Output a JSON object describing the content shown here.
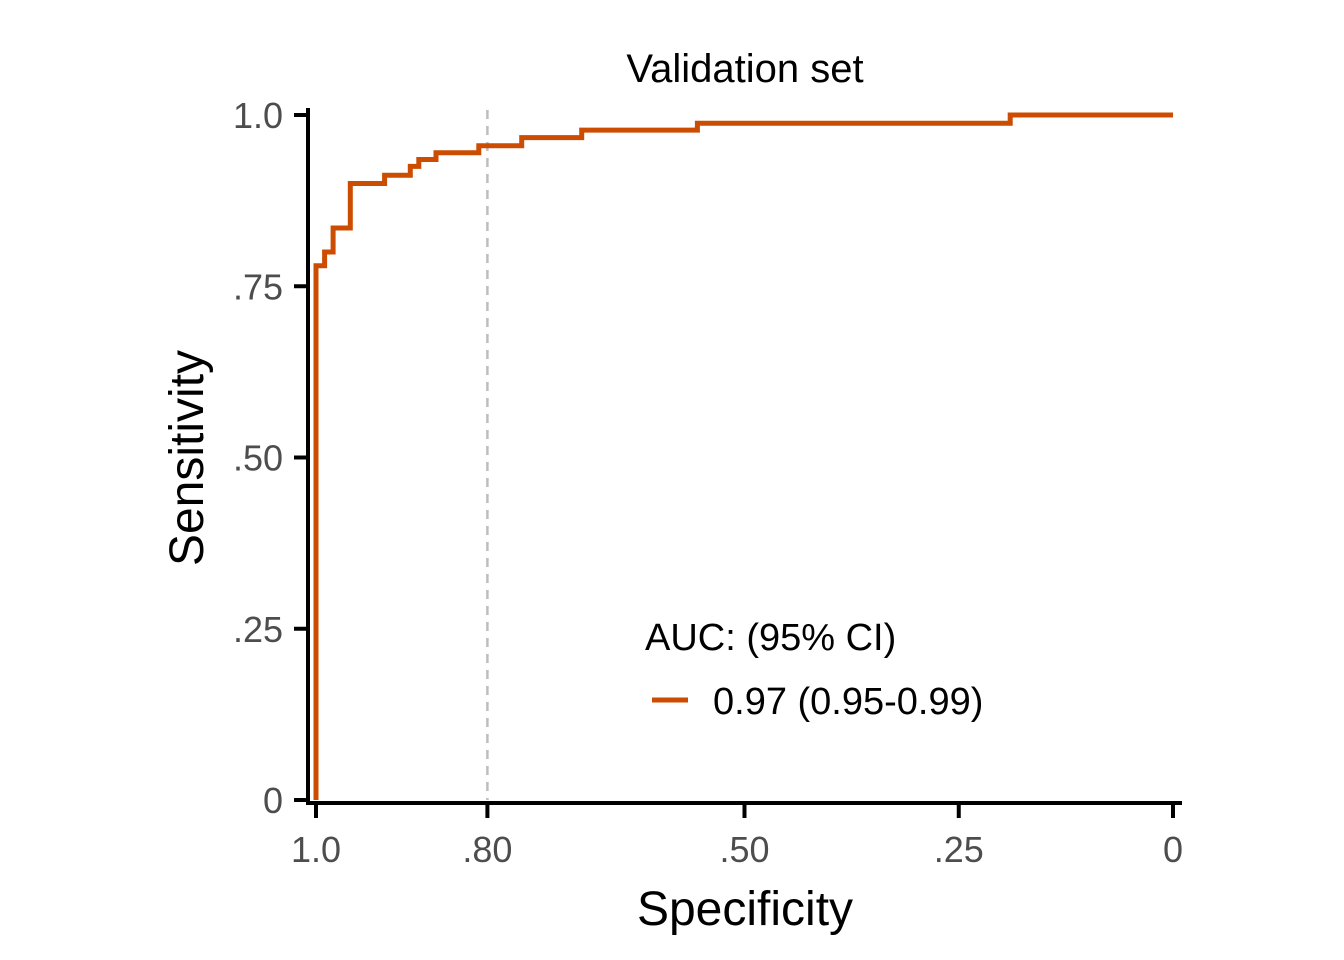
{
  "chart_data": {
    "type": "line",
    "title": "Validation set",
    "xlabel": "Specificity",
    "ylabel": "Sensitivity",
    "xlim": [
      1.0,
      0.0
    ],
    "ylim": [
      0.0,
      1.0
    ],
    "x_ticks": [
      {
        "value": 1.0,
        "label": "1.0"
      },
      {
        "value": 0.8,
        "label": ".80"
      },
      {
        "value": 0.5,
        "label": ".50"
      },
      {
        "value": 0.25,
        "label": ".25"
      },
      {
        "value": 0.0,
        "label": "0"
      }
    ],
    "y_ticks": [
      {
        "value": 0.0,
        "label": "0"
      },
      {
        "value": 0.25,
        "label": ".25"
      },
      {
        "value": 0.5,
        "label": ".50"
      },
      {
        "value": 0.75,
        "label": ".75"
      },
      {
        "value": 1.0,
        "label": "1.0"
      }
    ],
    "reference_line": {
      "x": 0.8,
      "style": "dashed",
      "color": "#bdbdbd"
    },
    "grid": false,
    "legend": {
      "title": "AUC: (95% CI)",
      "position": "bottom-right",
      "entries": [
        {
          "label": "0.97 (0.95-0.99)",
          "color": "#cc4c02"
        }
      ]
    },
    "series": [
      {
        "name": "0.97 (0.95-0.99)",
        "color": "#cc4c02",
        "step": true,
        "specificity": [
          1.0,
          1.0,
          0.99,
          0.99,
          0.98,
          0.98,
          0.96,
          0.96,
          0.92,
          0.92,
          0.89,
          0.89,
          0.88,
          0.88,
          0.86,
          0.86,
          0.81,
          0.81,
          0.76,
          0.76,
          0.69,
          0.69,
          0.555,
          0.555,
          0.19,
          0.19,
          0.0
        ],
        "sensitivity": [
          0.0,
          0.78,
          0.78,
          0.8,
          0.8,
          0.835,
          0.835,
          0.9,
          0.9,
          0.912,
          0.912,
          0.925,
          0.925,
          0.935,
          0.935,
          0.945,
          0.945,
          0.955,
          0.955,
          0.967,
          0.967,
          0.978,
          0.978,
          0.988,
          0.988,
          1.0,
          1.0
        ]
      }
    ]
  }
}
